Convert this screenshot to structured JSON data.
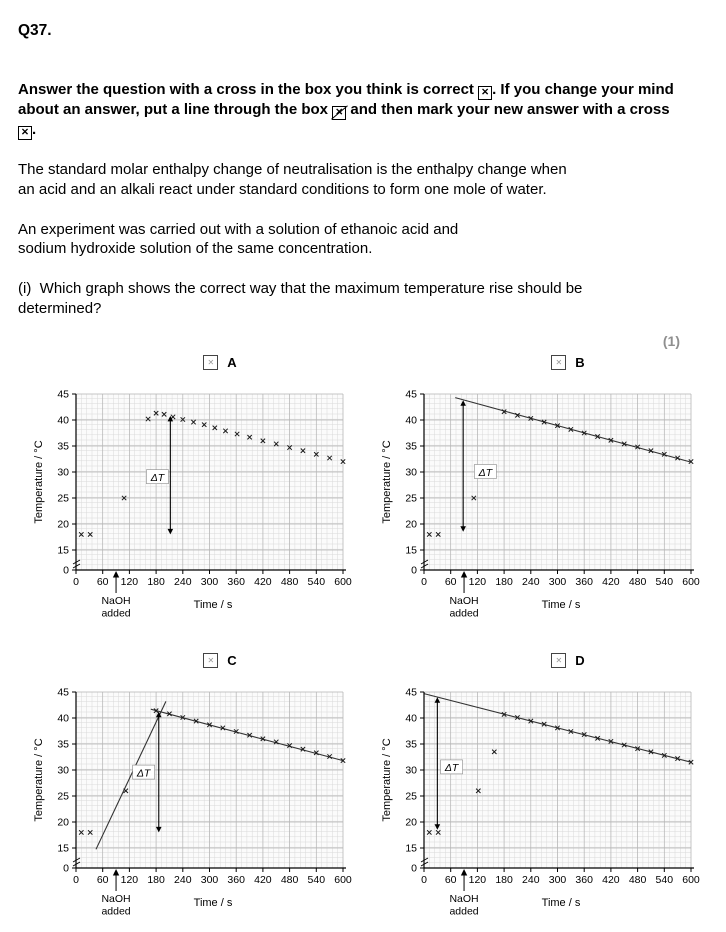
{
  "page": {
    "question_number": "Q37.",
    "instruction": {
      "p1": "Answer the question with a cross in the box you think is correct ",
      "p2": ". If you change your mind about an answer, put a line through the box ",
      "p3": " and then mark your new answer with a cross ",
      "p4": ".",
      "box_glyph": "✕"
    },
    "para1_lines": [
      "The standard molar enthalpy change of neutralisation is the enthalpy change when",
      "an acid and an alkali react under standard conditions to form one mole of water."
    ],
    "para2_lines": [
      "An experiment was carried out with a solution of ethanoic acid and",
      "sodium hydroxide solution of the same concentration."
    ],
    "part_i_lines": [
      "(i)  Which graph shows the correct way that the maximum temperature rise should be",
      "determined?"
    ],
    "marks": "(1)"
  },
  "chart_common": {
    "ylabel": "Temperature / °C",
    "xlabel": "Time / s",
    "annotation_lines": [
      "NaOH",
      "added"
    ],
    "delta_label": "ΔT",
    "answer_box_glyph": "✕",
    "xticks": [
      0,
      60,
      120,
      180,
      240,
      300,
      360,
      420,
      480,
      540,
      600
    ],
    "yticks": [
      0,
      15,
      20,
      25,
      30,
      35,
      40,
      45
    ],
    "xlim": [
      0,
      600
    ],
    "ylim": [
      0,
      45
    ],
    "naoh_arrow_time": 90,
    "grid": "fine graph paper"
  },
  "chart_data": [
    {
      "label": "A",
      "type": "scatter",
      "points": [
        [
          12,
          18
        ],
        [
          32,
          18
        ],
        [
          108,
          25
        ],
        [
          162,
          40.2
        ],
        [
          180,
          41.3
        ],
        [
          198,
          41.1
        ],
        [
          218,
          40.6
        ],
        [
          240,
          40.1
        ],
        [
          264,
          39.6
        ],
        [
          288,
          39.1
        ],
        [
          312,
          38.5
        ],
        [
          336,
          37.9
        ],
        [
          362,
          37.3
        ],
        [
          390,
          36.7
        ],
        [
          420,
          36.0
        ],
        [
          450,
          35.4
        ],
        [
          480,
          34.7
        ],
        [
          510,
          34.1
        ],
        [
          540,
          33.4
        ],
        [
          570,
          32.7
        ],
        [
          600,
          32.0
        ]
      ],
      "fit_lines": [],
      "delta": {
        "x": 212,
        "from": 18,
        "to": 40.8
      },
      "delta_label_pos": {
        "x": 183,
        "y": 29
      }
    },
    {
      "label": "B",
      "type": "scatter",
      "points": [
        [
          12,
          18
        ],
        [
          32,
          18
        ],
        [
          112,
          25
        ],
        [
          180,
          41.6
        ],
        [
          210,
          40.9
        ],
        [
          240,
          40.3
        ],
        [
          270,
          39.6
        ],
        [
          300,
          38.9
        ],
        [
          330,
          38.2
        ],
        [
          360,
          37.5
        ],
        [
          390,
          36.8
        ],
        [
          420,
          36.1
        ],
        [
          450,
          35.4
        ],
        [
          480,
          34.8
        ],
        [
          510,
          34.1
        ],
        [
          540,
          33.4
        ],
        [
          570,
          32.7
        ],
        [
          600,
          32.0
        ]
      ],
      "fit_lines": [
        {
          "x1": 70,
          "y1": 44.3,
          "x2": 600,
          "y2": 31.9
        }
      ],
      "delta": {
        "x": 88,
        "from": 18.5,
        "to": 43.8
      },
      "delta_label_pos": {
        "x": 138,
        "y": 30
      }
    },
    {
      "label": "C",
      "type": "scatter",
      "points": [
        [
          12,
          18
        ],
        [
          32,
          18
        ],
        [
          112,
          26
        ],
        [
          180,
          41.4
        ],
        [
          210,
          40.8
        ],
        [
          240,
          40.1
        ],
        [
          270,
          39.4
        ],
        [
          300,
          38.7
        ],
        [
          330,
          38.1
        ],
        [
          360,
          37.4
        ],
        [
          390,
          36.7
        ],
        [
          420,
          36.0
        ],
        [
          450,
          35.4
        ],
        [
          480,
          34.7
        ],
        [
          510,
          34.0
        ],
        [
          540,
          33.3
        ],
        [
          570,
          32.6
        ],
        [
          600,
          31.8
        ]
      ],
      "fit_lines": [
        {
          "x1": 45,
          "y1": 14,
          "x2": 202,
          "y2": 43.2
        },
        {
          "x1": 168,
          "y1": 41.7,
          "x2": 600,
          "y2": 31.8
        }
      ],
      "delta": {
        "x": 186,
        "from": 18,
        "to": 41.2
      },
      "delta_label_pos": {
        "x": 152,
        "y": 29.5
      }
    },
    {
      "label": "D",
      "type": "scatter",
      "points": [
        [
          12,
          18
        ],
        [
          32,
          18
        ],
        [
          122,
          26
        ],
        [
          158,
          33.5
        ],
        [
          180,
          40.7
        ],
        [
          210,
          40.1
        ],
        [
          240,
          39.4
        ],
        [
          270,
          38.8
        ],
        [
          300,
          38.1
        ],
        [
          330,
          37.4
        ],
        [
          360,
          36.8
        ],
        [
          390,
          36.1
        ],
        [
          420,
          35.5
        ],
        [
          450,
          34.8
        ],
        [
          480,
          34.1
        ],
        [
          510,
          33.5
        ],
        [
          540,
          32.8
        ],
        [
          570,
          32.2
        ],
        [
          600,
          31.5
        ]
      ],
      "fit_lines": [
        {
          "x1": 0,
          "y1": 44.7,
          "x2": 600,
          "y2": 31.5
        }
      ],
      "delta": {
        "x": 30,
        "from": 18.5,
        "to": 44.0
      },
      "delta_label_pos": {
        "x": 62,
        "y": 30.5
      }
    }
  ]
}
